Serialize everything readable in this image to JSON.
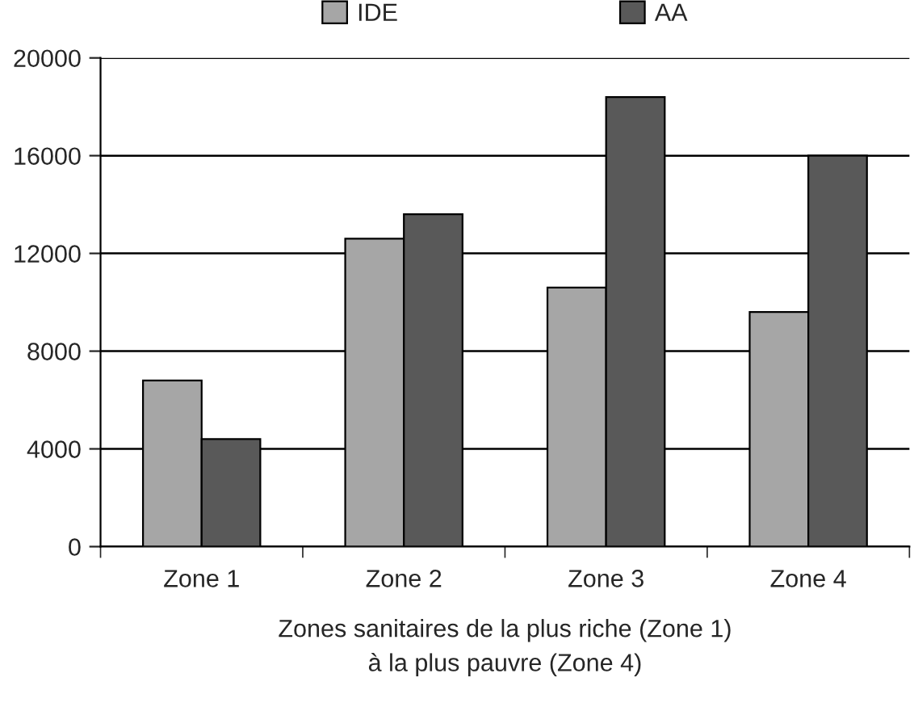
{
  "chart_data": {
    "type": "bar",
    "categories": [
      "Zone 1",
      "Zone 2",
      "Zone 3",
      "Zone 4"
    ],
    "series": [
      {
        "name": "IDE",
        "color": "#a6a6a6",
        "values": [
          6800,
          12600,
          10600,
          9600
        ]
      },
      {
        "name": "AA",
        "color": "#595959",
        "values": [
          4400,
          13600,
          18400,
          16000
        ]
      }
    ],
    "xlabel": "Zones sanitaires de la plus riche (Zone 1)\nà la plus pauvre (Zone 4)",
    "ylim": [
      0,
      20000
    ],
    "yticks": [
      0,
      4000,
      8000,
      12000,
      16000,
      20000
    ],
    "grid": "y",
    "legend": "top"
  }
}
